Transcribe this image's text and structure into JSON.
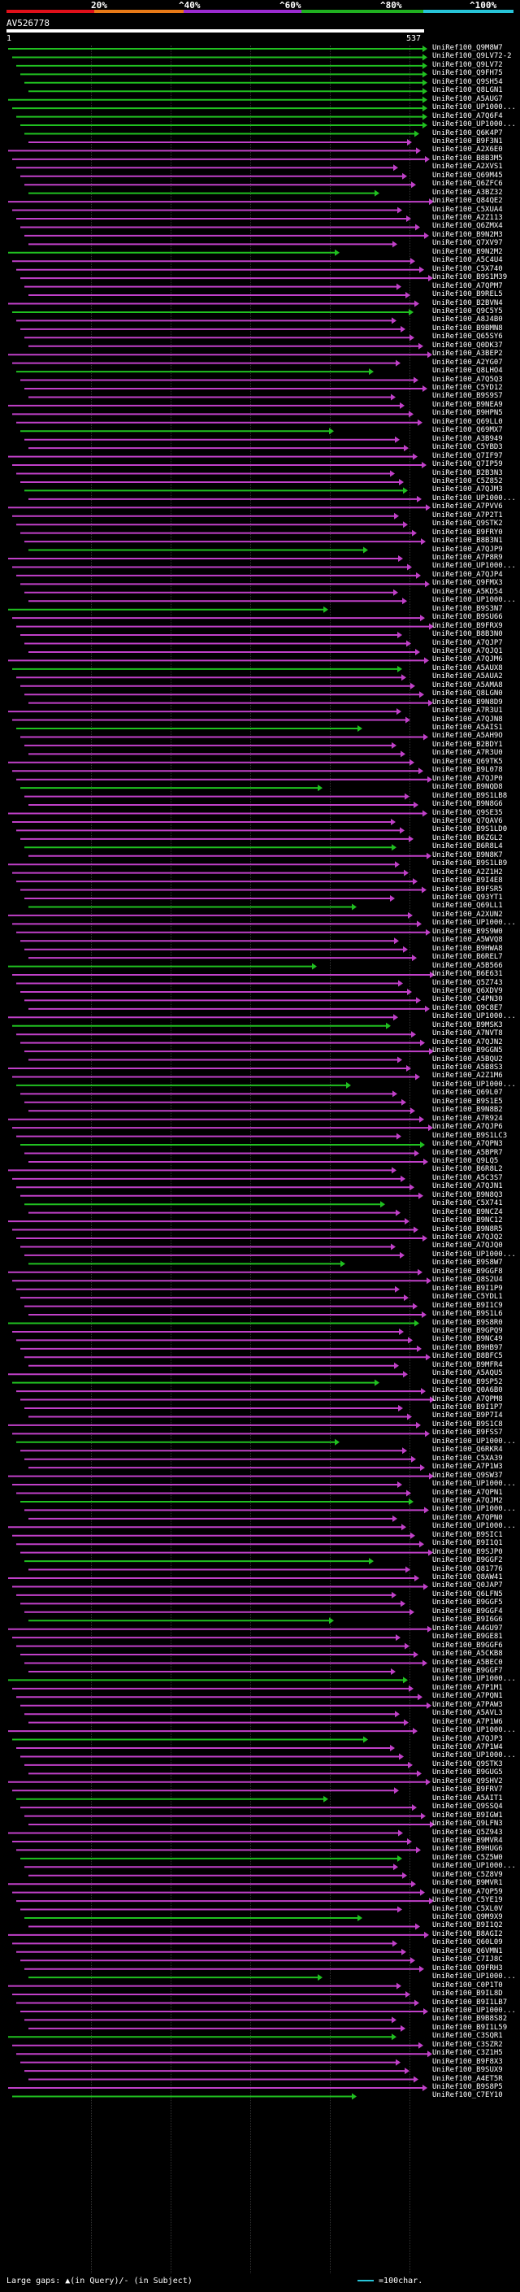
{
  "legend": {
    "ticks": [
      "20%",
      "^40%",
      "^60%",
      "^80%",
      "^100%"
    ],
    "colors": [
      "#e0101a",
      "#e87a17",
      "#9b2bd0",
      "#20b020",
      "#27c4d8"
    ]
  },
  "query": {
    "id": "AV526778",
    "start": "1",
    "end": "537"
  },
  "footer": {
    "left": "Large gaps: ▲(in Query)/- (in Subject)",
    "right": "=100char."
  },
  "hits": [
    "UniRef100_Q9M8W7",
    "UniRef100_Q9LV72-2",
    "UniRef100_Q9LV72",
    "UniRef100_Q9FH75",
    "UniRef100_Q9SH54",
    "UniRef100_Q8LGN1",
    "UniRef100_A5AUG7",
    "UniRef100_UP1000...",
    "UniRef100_A7Q6F4",
    "UniRef100_UP1000...",
    "UniRef100_Q6K4P7",
    "UniRef100_B9F3N1",
    "UniRef100_A2X6E0",
    "UniRef100_B8B3M5",
    "UniRef100_A2XVS1",
    "UniRef100_Q69M45",
    "UniRef100_Q6ZFC6",
    "UniRef100_A3BZ32",
    "UniRef100_Q84QE2",
    "UniRef100_C5XUA4",
    "UniRef100_A2Z113",
    "UniRef100_Q6ZMX4",
    "UniRef100_B9N2M3",
    "UniRef100_Q7XV97",
    "UniRef100_B9N2M2",
    "UniRef100_A5C4U4",
    "UniRef100_C5X740",
    "UniRef100_B9S1M39",
    "UniRef100_A7QPM7",
    "UniRef100_B9REL5",
    "UniRef100_B2BVN4",
    "UniRef100_Q9C5Y5",
    "UniRef100_A8J4B0",
    "UniRef100_B9BMN8",
    "UniRef100_Q65SY6",
    "UniRef100_Q0DK37",
    "UniRef100_A3BEP2",
    "UniRef100_A2YG07",
    "UniRef100_Q8LHO4",
    "UniRef100_A7Q5Q3",
    "UniRef100_C5YD12",
    "UniRef100_B9S9S7",
    "UniRef100_B9NEA9",
    "UniRef100_B9HPN5",
    "UniRef100_Q69LL0",
    "UniRef100_Q69MX7",
    "UniRef100_A3B949",
    "UniRef100_C5YBD3",
    "UniRef100_Q7IF97",
    "UniRef100_Q7IP59",
    "UniRef100_B2B3N3",
    "UniRef100_C5Z852",
    "UniRef100_A7QJM3",
    "UniRef100_UP1000...",
    "UniRef100_A7PVV6",
    "UniRef100_A7P2T1",
    "UniRef100_Q9STK2",
    "UniRef100_B9FRY0",
    "UniRef100_B8B3N1",
    "UniRef100_A7QJP9",
    "UniRef100_A7P8R9",
    "UniRef100_UP1000...",
    "UniRef100_A7QJP4",
    "UniRef100_Q9FMX3",
    "UniRef100_A5KD54",
    "UniRef100_UP1000...",
    "UniRef100_B9S3N7",
    "UniRef100_B9SU66",
    "UniRef100_B9FRX9",
    "UniRef100_B8B3N0",
    "UniRef100_A7QJP7",
    "UniRef100_A7QJQ1",
    "UniRef100_A7QJM6",
    "UniRef100_A5AUX8",
    "UniRef100_A5AUA2",
    "UniRef100_A5AMA8",
    "UniRef100_Q8LGN0",
    "UniRef100_B9N8D9",
    "UniRef100_A7R3U1",
    "UniRef100_A7QJN8",
    "UniRef100_A5AIS1",
    "UniRef100_A5AH9O",
    "UniRef100_B2BDY1",
    "UniRef100_A7R3U0",
    "UniRef100_Q69TK5",
    "UniRef100_B9L078",
    "UniRef100_A7QJP0",
    "UniRef100_B9NQD8",
    "UniRef100_B9S1LB8",
    "UniRef100_B9N8G6",
    "UniRef100_Q9SE35",
    "UniRef100_Q7QAV6",
    "UniRef100_B9S1LD0",
    "UniRef100_B6ZGL2",
    "UniRef100_B6R8L4",
    "UniRef100_B9N8K7",
    "UniRef100_B9S1LB9",
    "UniRef100_A2Z1H2",
    "UniRef100_B9I4E8",
    "UniRef100_B9FSR5",
    "UniRef100_Q93YT1",
    "UniRef100_Q69LL1",
    "UniRef100_A2XUN2",
    "UniRef100_UP1000...",
    "UniRef100_B9S9W0",
    "UniRef100_A5WVQ8",
    "UniRef100_B9HWA8",
    "UniRef100_B6REL7",
    "UniRef100_A5B566",
    "UniRef100_B6E631",
    "UniRef100_Q5Z743",
    "UniRef100_Q6XDV9",
    "UniRef100_C4PN30",
    "UniRef100_Q9C8E7",
    "UniRef100_UP1000...",
    "UniRef100_B9MSK3",
    "UniRef100_A7NVT8",
    "UniRef100_A7QJN2",
    "UniRef100_B9GGN5",
    "UniRef100_A5BQU2",
    "UniRef100_A5B8S3",
    "UniRef100_A2Z1M6",
    "UniRef100_UP1000...",
    "UniRef100_Q69L07",
    "UniRef100_B9S1E5",
    "UniRef100_B9N8B2",
    "UniRef100_A7R924",
    "UniRef100_A7QJP6",
    "UniRef100_B9S1LC3",
    "UniRef100_A7QPN3",
    "UniRef100_A5BPR7",
    "UniRef100_Q9LQ5",
    "UniRef100_B6R8L2",
    "UniRef100_A5C3S7",
    "UniRef100_A7QJN1",
    "UniRef100_B9N8Q3",
    "UniRef100_C5X741",
    "UniRef100_B9NCZ4",
    "UniRef100_B9NC12",
    "UniRef100_B9N8R5",
    "UniRef100_A7QJQ2",
    "UniRef100_A7QJQ0",
    "UniRef100_UP1000...",
    "UniRef100_B9S8W7",
    "UniRef100_B9GGF8",
    "UniRef100_Q8S2U4",
    "UniRef100_B9I1P9",
    "UniRef100_C5YDL1",
    "UniRef100_B9I1C9",
    "UniRef100_B9S1L6",
    "UniRef100_B9S8R0",
    "UniRef100_B9GPQ9",
    "UniRef100_B9NC49",
    "UniRef100_B9HB97",
    "UniRef100_B8BFC5",
    "UniRef100_B9MFR4",
    "UniRef100_A5AQU5",
    "UniRef100_B9SP52",
    "UniRef100_Q0A6B0",
    "UniRef100_A7QPM8",
    "UniRef100_B9I1P7",
    "UniRef100_B9P7I4",
    "UniRef100_B9S1C8",
    "UniRef100_B9FSS7",
    "UniRef100_UP1000...",
    "UniRef100_Q6RKR4",
    "UniRef100_C5XA39",
    "UniRef100_A7P1W3",
    "UniRef100_Q9SW37",
    "UniRef100_UP1000...",
    "UniRef100_A7QPN1",
    "UniRef100_A7QJM2",
    "UniRef100_UP1000...",
    "UniRef100_A7QPN0",
    "UniRef100_UP1000...",
    "UniRef100_B9SIC1",
    "UniRef100_B9I1Q1",
    "UniRef100_B9SJP0",
    "UniRef100_B9GGF2",
    "UniRef100_Q81776",
    "UniRef100_Q8AW41",
    "UniRef100_Q0JAP7",
    "UniRef100_Q6LFN5",
    "UniRef100_B9GGF5",
    "UniRef100_B9GGF4",
    "UniRef100_B9I6G6",
    "UniRef100_A4GU97",
    "UniRef100_B9GE81",
    "UniRef100_B9GGF6",
    "UniRef100_A5CKB8",
    "UniRef100_A5BEC0",
    "UniRef100_B9GGF7",
    "UniRef100_UP1000...",
    "UniRef100_A7P1M1",
    "UniRef100_A7PQN1",
    "UniRef100_A7PAW3",
    "UniRef100_A5AVL3",
    "UniRef100_A7P1W6",
    "UniRef100_UP1000...",
    "UniRef100_A7QJP3",
    "UniRef100_A7P1W4",
    "UniRef100_UP1000...",
    "UniRef100_Q9STK3",
    "UniRef100_B9GUG5",
    "UniRef100_Q9SHV2",
    "UniRef100_B9FRV7",
    "UniRef100_A5AIT1",
    "UniRef100_Q9SSQ4",
    "UniRef100_B9IGW1",
    "UniRef100_Q9LFN3",
    "UniRef100_Q5Z943",
    "UniRef100_B9MVR4",
    "UniRef100_B9HUG6",
    "UniRef100_C5Z5W0",
    "UniRef100_UP1000...",
    "UniRef100_C5Z8V9",
    "UniRef100_B9MVR1",
    "UniRef100_A7QP59",
    "UniRef100_C5YE19",
    "UniRef100_C5XL0V",
    "UniRef100_Q9M9X9",
    "UniRef100_B9I1Q2",
    "UniRef100_B8AGI2",
    "UniRef100_Q60L09",
    "UniRef100_Q6VMN1",
    "UniRef100_C7IJ8C",
    "UniRef100_Q9FRH3",
    "UniRef100_UP1000...",
    "UniRef100_C0P1T0",
    "UniRef100_B9IL8D",
    "UniRef100_B9I1LB7",
    "UniRef100_UP1000...",
    "UniRef100_B9B8S82",
    "UniRef100_B9I1L59",
    "UniRef100_C3SQR1",
    "UniRef100_C3SZR2",
    "UniRef100_C3Z1H5",
    "UniRef100_B9F8X3",
    "UniRef100_B9SUX9",
    "UniRef100_A4ET5R",
    "UniRef100_B9S8P5",
    "UniRef100_C7EY10"
  ]
}
